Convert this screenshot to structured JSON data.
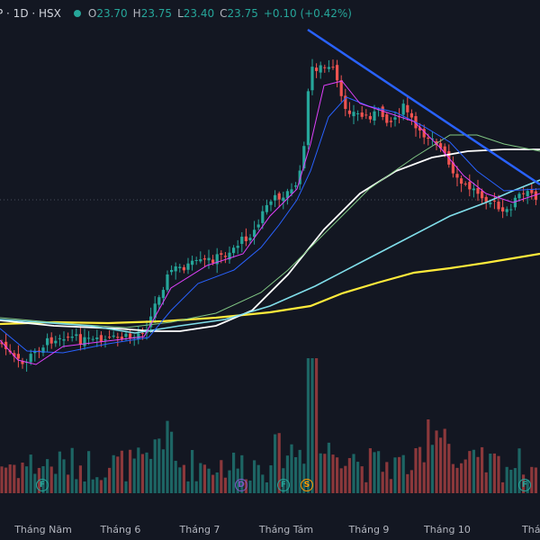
{
  "header": {
    "symbol": "P · 1D · HSX",
    "open_label": "O",
    "open": "23.70",
    "high_label": "H",
    "high": "23.75",
    "low_label": "L",
    "low": "23.40",
    "close_label": "C",
    "close": "23.75",
    "change": "+0.10 (+0.42%)"
  },
  "x_axis": {
    "ticks": [
      {
        "label": "Tháng Năm",
        "x": 48
      },
      {
        "label": "Tháng 6",
        "x": 134
      },
      {
        "label": "Tháng 7",
        "x": 222
      },
      {
        "label": "Tháng Tám",
        "x": 318
      },
      {
        "label": "Tháng 9",
        "x": 410
      },
      {
        "label": "Tháng 10",
        "x": 497
      },
      {
        "label": "Tháng",
        "x": 588
      }
    ]
  },
  "events": [
    {
      "letter": "F",
      "x": 46,
      "color": "#26a69a",
      "icon": "earnings-icon"
    },
    {
      "letter": "D",
      "x": 267,
      "color": "#7e57c2",
      "icon": "dividend-icon"
    },
    {
      "letter": "F",
      "x": 314,
      "color": "#26a69a",
      "icon": "earnings-icon"
    },
    {
      "letter": "S",
      "x": 340,
      "color": "#ff9800",
      "icon": "split-icon"
    },
    {
      "letter": "F",
      "x": 582,
      "color": "#26a69a",
      "icon": "earnings-icon"
    }
  ],
  "colors": {
    "up": "#26a69a",
    "down": "#ef5350",
    "ma_fast": "#e040fb",
    "ma_mid": "#2962ff",
    "ma_green": "#81c784",
    "ma_cyan": "#80deea",
    "ma_white": "#ffffff",
    "ma_yellow": "#ffeb3b",
    "trendline": "#2962ff"
  }
}
